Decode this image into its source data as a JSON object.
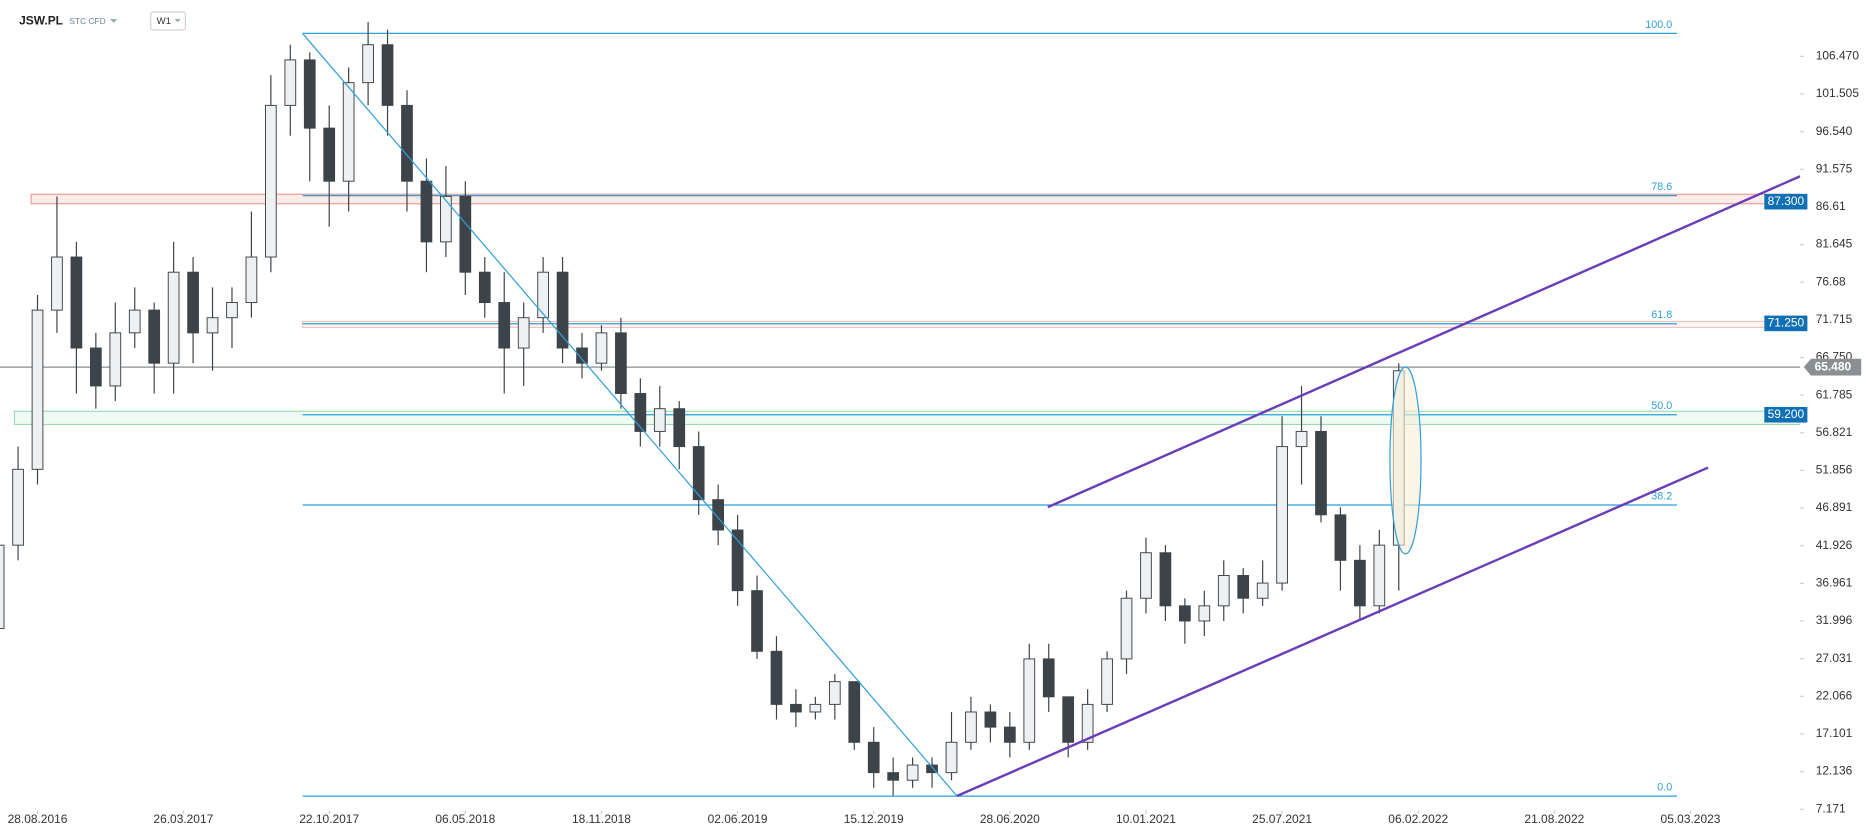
{
  "header": {
    "symbol": "JSW.PL",
    "instrument": "STC CFD",
    "interval": "W1"
  },
  "chart_data": {
    "type": "candlestick",
    "xlim": [
      "05.07.2016",
      "10.08.2023"
    ],
    "xticks": [
      "28.08.2016",
      "26.03.2017",
      "22.10.2017",
      "06.05.2018",
      "18.11.2018",
      "02.06.2019",
      "15.12.2019",
      "28.06.2020",
      "10.01.2021",
      "25.07.2021",
      "06.02.2022",
      "21.08.2022",
      "05.03.2023"
    ],
    "ylim": [
      4.17,
      113.9
    ],
    "yticks": [
      {
        "value": 106.47,
        "label": "106.470"
      },
      101.505,
      {
        "value": 96.54,
        "label": "96.540"
      },
      91.575,
      86.61,
      81.645,
      76.68,
      71.715,
      {
        "value": 66.75,
        "label": "66.750"
      },
      61.785,
      56.821,
      51.856,
      46.891,
      41.926,
      36.961,
      31.996,
      27.031,
      22.066,
      17.101,
      12.136,
      7.171
    ],
    "up_color": "#eef0f2",
    "down_color": "#3d4449",
    "x": [
      "03.07.2016",
      "31.07.2016",
      "28.08.2016",
      "25.09.2016",
      "23.10.2016",
      "20.11.2016",
      "18.12.2016",
      "15.01.2017",
      "12.02.2017",
      "12.03.2017",
      "09.04.2017",
      "07.05.2017",
      "04.06.2017",
      "02.07.2017",
      "30.07.2017",
      "27.08.2017",
      "24.09.2017",
      "22.10.2017",
      "19.11.2017",
      "17.12.2017",
      "14.01.2018",
      "11.02.2018",
      "11.03.2018",
      "08.04.2018",
      "06.05.2018",
      "03.06.2018",
      "01.07.2018",
      "29.07.2018",
      "26.08.2018",
      "23.09.2018",
      "21.10.2018",
      "18.11.2018",
      "16.12.2018",
      "13.01.2019",
      "10.02.2019",
      "10.03.2019",
      "07.04.2019",
      "05.05.2019",
      "02.06.2019",
      "30.06.2019",
      "28.07.2019",
      "25.08.2019",
      "22.09.2019",
      "20.10.2019",
      "17.11.2019",
      "15.12.2019",
      "12.01.2020",
      "09.02.2020",
      "08.03.2020",
      "05.04.2020",
      "03.05.2020",
      "31.05.2020",
      "28.06.2020",
      "26.07.2020",
      "23.08.2020",
      "20.09.2020",
      "18.10.2020",
      "15.11.2020",
      "13.12.2020",
      "10.01.2021",
      "07.02.2021",
      "07.03.2021",
      "04.04.2021",
      "02.05.2021",
      "30.05.2021",
      "27.06.2021",
      "25.07.2021",
      "22.08.2021",
      "19.09.2021",
      "17.10.2021",
      "14.11.2021",
      "12.12.2021",
      "09.01.2022"
    ],
    "open": [
      31,
      42,
      52,
      73,
      80,
      68,
      63,
      70,
      73,
      66,
      78,
      70,
      72,
      74,
      80,
      100,
      106,
      97,
      90,
      103,
      108,
      100,
      90,
      82,
      88,
      78,
      74,
      68,
      72,
      78,
      68,
      66,
      70,
      62,
      57,
      60,
      55,
      48,
      44,
      36,
      28,
      21,
      20,
      21,
      24,
      16,
      12,
      11,
      13,
      12,
      16,
      20,
      18,
      16,
      27,
      22,
      16,
      21,
      27,
      35,
      41,
      34,
      32,
      34,
      38,
      35,
      37,
      55,
      57,
      46,
      40,
      34,
      42
    ],
    "high": [
      44,
      55,
      75,
      88,
      82,
      70,
      74,
      76,
      74,
      82,
      80,
      76,
      76,
      86,
      104,
      108,
      107,
      100,
      105,
      111,
      110,
      102,
      93,
      92,
      90,
      80,
      78,
      74,
      80,
      80,
      70,
      71,
      72,
      64,
      63,
      61,
      57,
      50,
      46,
      38,
      30,
      23,
      22,
      25,
      24,
      18,
      14,
      14,
      14,
      20,
      22,
      21,
      20,
      29,
      29,
      22,
      23,
      28,
      36,
      43,
      42,
      35,
      36,
      40,
      39,
      40,
      59,
      63,
      59,
      47,
      42,
      44,
      66
    ],
    "low": [
      30,
      40,
      50,
      70,
      62,
      60,
      61,
      68,
      62,
      62,
      66,
      65,
      68,
      72,
      78,
      96,
      90,
      84,
      86,
      100,
      96,
      86,
      78,
      80,
      75,
      72,
      62,
      63,
      70,
      66,
      64,
      65,
      60,
      55,
      55,
      52,
      46,
      42,
      34,
      27,
      19,
      18,
      19,
      19,
      15,
      10,
      9,
      10,
      10,
      11,
      15,
      16,
      14,
      15,
      20,
      14,
      15,
      20,
      25,
      33,
      32,
      29,
      30,
      32,
      33,
      34,
      36,
      50,
      45,
      36,
      32,
      33,
      36
    ],
    "close": [
      42,
      52,
      73,
      80,
      68,
      63,
      70,
      73,
      66,
      78,
      70,
      72,
      74,
      80,
      100,
      106,
      97,
      90,
      103,
      108,
      100,
      90,
      82,
      88,
      78,
      74,
      68,
      72,
      78,
      68,
      66,
      70,
      62,
      57,
      60,
      55,
      48,
      44,
      36,
      28,
      21,
      20,
      21,
      24,
      16,
      12,
      11,
      13,
      12,
      16,
      20,
      18,
      16,
      27,
      22,
      16,
      21,
      27,
      35,
      41,
      34,
      32,
      34,
      38,
      35,
      37,
      55,
      57,
      46,
      40,
      34,
      42,
      65
    ],
    "fib_levels": [
      {
        "level": {
          "value": 100,
          "label": "100.0"
        },
        "price": 109.5
      },
      {
        "level": 78.6,
        "price": 88.1
      },
      {
        "level": 61.8,
        "price": 71.2
      },
      {
        "level": {
          "value": 50,
          "label": "50.0"
        },
        "price": 59.2
      },
      {
        "level": 38.2,
        "price": 47.3
      },
      {
        "level": {
          "value": 0,
          "label": "0.0"
        },
        "price": 8.9
      }
    ],
    "price_tags": [
      {
        "value": 87.3,
        "label": "87.300"
      },
      {
        "value": 71.25,
        "label": "71.250"
      },
      {
        "value": 59.2,
        "label": "59.200"
      }
    ],
    "current_price": {
      "value": 65.48,
      "label": "65.480"
    }
  }
}
